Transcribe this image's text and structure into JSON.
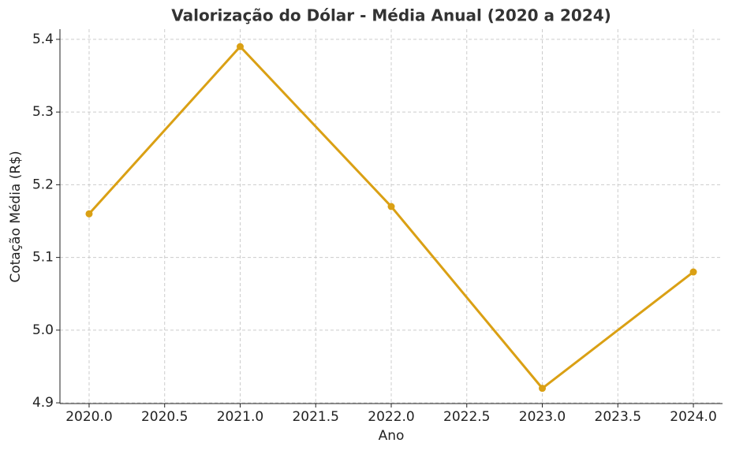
{
  "chart_data": {
    "type": "line",
    "title": "Valorização do Dólar - Média Anual (2020 a 2024)",
    "x_label": "Ano",
    "y_label": "Cotação Média (R$)",
    "x": [
      2020,
      2021,
      2022,
      2023,
      2024
    ],
    "series": [
      {
        "color": "#daa014",
        "values": [
          5.16,
          5.39,
          5.17,
          4.92,
          5.08
        ]
      }
    ],
    "xlim": [
      2019.807,
      2024.193
    ],
    "ylim": [
      4.899,
      5.414
    ],
    "xticks": [
      {
        "value": 2020,
        "label": "2020.0"
      },
      {
        "value": 2020.5,
        "label": "2020.5"
      },
      {
        "value": 2021,
        "label": "2021.0"
      },
      {
        "value": 2021.5,
        "label": "2021.5"
      },
      {
        "value": 2022,
        "label": "2022.0"
      },
      {
        "value": 2022.5,
        "label": "2022.5"
      },
      {
        "value": 2023,
        "label": "2023.0"
      },
      {
        "value": 2023.5,
        "label": "2023.5"
      },
      {
        "value": 2024,
        "label": "2024.0"
      }
    ],
    "yticks": [
      4.9,
      {
        "value": 5.0,
        "label": "5.0"
      },
      5.1,
      5.2,
      5.3,
      5.4
    ],
    "grid": true
  }
}
